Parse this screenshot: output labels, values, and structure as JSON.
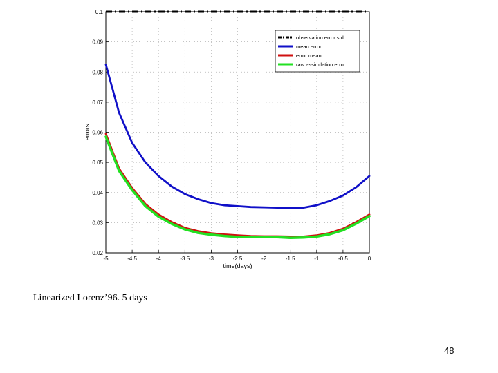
{
  "caption": "Linearized Lorenz’96. 5 days",
  "page_number": "48",
  "chart_data": {
    "type": "line",
    "xlabel": "time(days)",
    "ylabel": "errors",
    "xlim": [
      -5,
      0
    ],
    "ylim": [
      0.02,
      0.1
    ],
    "x_ticks": [
      -5,
      -4.5,
      -4,
      -3.5,
      -3,
      -2.5,
      -2,
      -1.5,
      -1,
      -0.5,
      0
    ],
    "x_tick_labels": [
      "-5",
      "-4.5",
      "-4",
      "-3.5",
      "-3",
      "-2.5",
      "-2",
      "-1.5",
      "-1",
      "-0.5",
      "0"
    ],
    "y_ticks": [
      0.02,
      0.03,
      0.04,
      0.05,
      0.06,
      0.07,
      0.08,
      0.09,
      0.1
    ],
    "y_tick_labels": [
      "0.02",
      "0.03",
      "0.04",
      "0.05",
      "0.06",
      "0.07",
      "0.08",
      "0.09",
      "0.1"
    ],
    "grid": true,
    "legend_position": "top-right",
    "x": [
      -5,
      -4.75,
      -4.5,
      -4.25,
      -4,
      -3.75,
      -3.5,
      -3.25,
      -3,
      -2.75,
      -2.5,
      -2.25,
      -2,
      -1.75,
      -1.5,
      -1.25,
      -1,
      -0.75,
      -0.5,
      -0.25,
      0
    ],
    "series": [
      {
        "name": "observation error std",
        "color": "#000000",
        "style": "dash-dot",
        "values": [
          0.1,
          0.1,
          0.1,
          0.1,
          0.1,
          0.1,
          0.1,
          0.1,
          0.1,
          0.1,
          0.1,
          0.1,
          0.1,
          0.1,
          0.1,
          0.1,
          0.1,
          0.1,
          0.1,
          0.1,
          0.1
        ]
      },
      {
        "name": "mean error",
        "color": "#1010c8",
        "style": "solid",
        "values": [
          0.0825,
          0.0665,
          0.0565,
          0.05,
          0.0455,
          0.042,
          0.0395,
          0.0378,
          0.0365,
          0.0358,
          0.0355,
          0.0352,
          0.0351,
          0.035,
          0.0348,
          0.035,
          0.0358,
          0.0372,
          0.039,
          0.0418,
          0.0455
        ]
      },
      {
        "name": "error mean",
        "color": "#d01010",
        "style": "solid",
        "values": [
          0.0595,
          0.048,
          0.0415,
          0.0362,
          0.0327,
          0.0302,
          0.0283,
          0.0272,
          0.0265,
          0.0261,
          0.0258,
          0.0256,
          0.0255,
          0.0255,
          0.0254,
          0.0254,
          0.0258,
          0.0266,
          0.028,
          0.0302,
          0.0327
        ]
      },
      {
        "name": "raw assimilation error",
        "color": "#22e022",
        "style": "solid",
        "values": [
          0.0585,
          0.0472,
          0.0408,
          0.0355,
          0.032,
          0.0296,
          0.0278,
          0.0266,
          0.026,
          0.0256,
          0.0253,
          0.0252,
          0.0252,
          0.0252,
          0.025,
          0.0251,
          0.0254,
          0.0262,
          0.0275,
          0.0297,
          0.0322
        ]
      }
    ]
  }
}
